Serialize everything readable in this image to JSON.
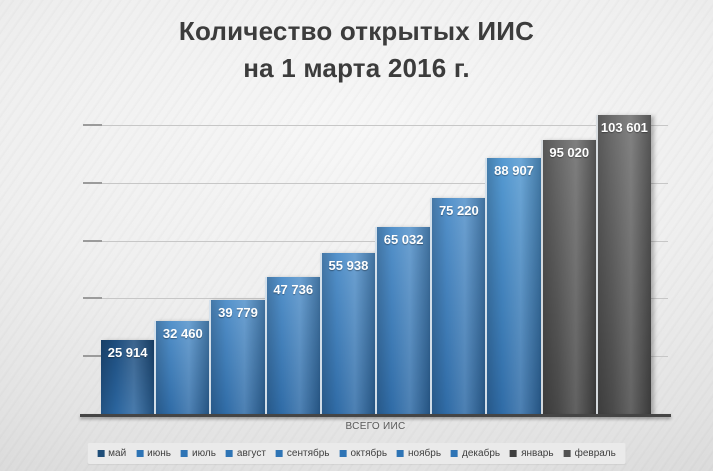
{
  "title": {
    "line1": "Количество открытых ИИС",
    "line2": "на 1 марта 2016 г."
  },
  "chart_data": {
    "type": "bar",
    "title": "Количество открытых ИИС на 1 марта 2016 г.",
    "x_category": "ВСЕГО ИИС",
    "categories": [
      "ВСЕГО ИИС"
    ],
    "ylim": [
      0,
      110000
    ],
    "gridline_step": 20000,
    "grid": true,
    "legend_position": "bottom",
    "series": [
      {
        "name": "май",
        "value": 25914,
        "display": "25 914",
        "color_top": "#1d4c7c",
        "color_bottom": "#2b66a0",
        "marker": "#1f4e79"
      },
      {
        "name": "июнь",
        "value": 32460,
        "display": "32 460",
        "color_top": "#5492cb",
        "color_bottom": "#2f6ba6",
        "marker": "#2e74b5"
      },
      {
        "name": "июль",
        "value": 39779,
        "display": "39 779",
        "color_top": "#5492cb",
        "color_bottom": "#2f6ba6",
        "marker": "#2e74b5"
      },
      {
        "name": "август",
        "value": 47736,
        "display": "47 736",
        "color_top": "#5492cb",
        "color_bottom": "#2f6ba6",
        "marker": "#2e74b5"
      },
      {
        "name": "сентябрь",
        "value": 55938,
        "display": "55 938",
        "color_top": "#5492cb",
        "color_bottom": "#2f6ba6",
        "marker": "#2e74b5"
      },
      {
        "name": "октябрь",
        "value": 65032,
        "display": "65 032",
        "color_top": "#5492cb",
        "color_bottom": "#2f6ba6",
        "marker": "#2e74b5"
      },
      {
        "name": "ноябрь",
        "value": 75220,
        "display": "75 220",
        "color_top": "#5492cb",
        "color_bottom": "#2f6ba6",
        "marker": "#2e74b5"
      },
      {
        "name": "декабрь",
        "value": 88907,
        "display": "88 907",
        "color_top": "#559ad2",
        "color_bottom": "#2f6ba6",
        "marker": "#2e74b5"
      },
      {
        "name": "январь",
        "value": 95020,
        "display": "95 020",
        "color_top": "#6a6a6a",
        "color_bottom": "#474747",
        "marker": "#3f3f3f"
      },
      {
        "name": "февраль",
        "value": 103601,
        "display": "103 601",
        "color_top": "#6e6e6e",
        "color_bottom": "#4a4a4a",
        "marker": "#525252"
      }
    ]
  }
}
